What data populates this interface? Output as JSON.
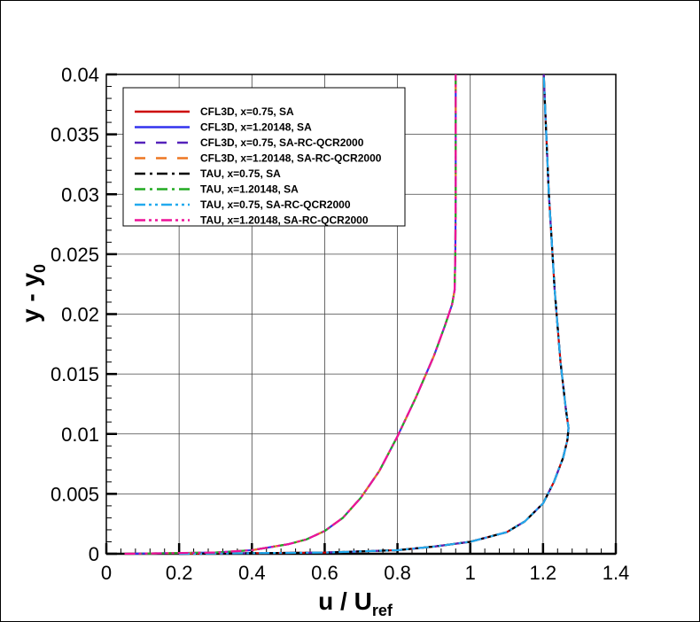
{
  "chart_data": {
    "type": "line",
    "title": "",
    "xlabel": "u / U",
    "xlabel_sub": "ref",
    "ylabel": "y - y",
    "ylabel_sub": "0",
    "xlim": [
      0,
      1.4
    ],
    "ylim": [
      0,
      0.04
    ],
    "xticks": [
      "0",
      "0.2",
      "0.4",
      "0.6",
      "0.8",
      "1",
      "1.2",
      "1.4"
    ],
    "yticks": [
      "0",
      "0.005",
      "0.01",
      "0.015",
      "0.02",
      "0.025",
      "0.03",
      "0.035",
      "0.04"
    ],
    "grid": true,
    "legend_position": "top-left",
    "series": [
      {
        "name": "CFL3D, x=0.75, SA",
        "color": "#cc0000",
        "dash": "solid",
        "profile": "x075"
      },
      {
        "name": "CFL3D, x=1.20148, SA",
        "color": "#3333ee",
        "dash": "solid",
        "profile": "x120"
      },
      {
        "name": "CFL3D, x=0.75, SA-RC-QCR2000",
        "color": "#5522bb",
        "dash": "dash",
        "profile": "x075"
      },
      {
        "name": "CFL3D, x=1.20148, SA-RC-QCR2000",
        "color": "#ee7722",
        "dash": "dash",
        "profile": "x120"
      },
      {
        "name": "TAU, x=0.75, SA",
        "color": "#000000",
        "dash": "dashdot",
        "profile": "x075"
      },
      {
        "name": "TAU, x=1.20148, SA",
        "color": "#22aa22",
        "dash": "dashdot",
        "profile": "x120"
      },
      {
        "name": "TAU, x=0.75, SA-RC-QCR2000",
        "color": "#22aaee",
        "dash": "dashdotdot",
        "profile": "x075"
      },
      {
        "name": "TAU, x=1.20148, SA-RC-QCR2000",
        "color": "#ee1199",
        "dash": "dashdotdot",
        "profile": "x120"
      }
    ],
    "profiles": {
      "x120": [
        [
          0.05,
          0
        ],
        [
          0.3,
          0.0001
        ],
        [
          0.4,
          0.0003
        ],
        [
          0.5,
          0.0008
        ],
        [
          0.55,
          0.0012
        ],
        [
          0.6,
          0.0019
        ],
        [
          0.65,
          0.003
        ],
        [
          0.7,
          0.0047
        ],
        [
          0.75,
          0.0069
        ],
        [
          0.8,
          0.0098
        ],
        [
          0.85,
          0.013
        ],
        [
          0.9,
          0.0165
        ],
        [
          0.93,
          0.019
        ],
        [
          0.95,
          0.0208
        ],
        [
          0.957,
          0.022
        ],
        [
          0.959,
          0.025
        ],
        [
          0.96,
          0.03
        ],
        [
          0.96,
          0.04
        ]
      ],
      "x075": [
        [
          0.2,
          0
        ],
        [
          0.6,
          0.0001
        ],
        [
          0.8,
          0.0003
        ],
        [
          0.9,
          0.0006
        ],
        [
          1.0,
          0.001
        ],
        [
          1.1,
          0.0018
        ],
        [
          1.15,
          0.0027
        ],
        [
          1.2,
          0.0042
        ],
        [
          1.23,
          0.006
        ],
        [
          1.255,
          0.008
        ],
        [
          1.267,
          0.0095
        ],
        [
          1.27,
          0.0105
        ],
        [
          1.263,
          0.012
        ],
        [
          1.248,
          0.016
        ],
        [
          1.232,
          0.022
        ],
        [
          1.216,
          0.03
        ],
        [
          1.206,
          0.037
        ],
        [
          1.202,
          0.04
        ]
      ]
    }
  }
}
